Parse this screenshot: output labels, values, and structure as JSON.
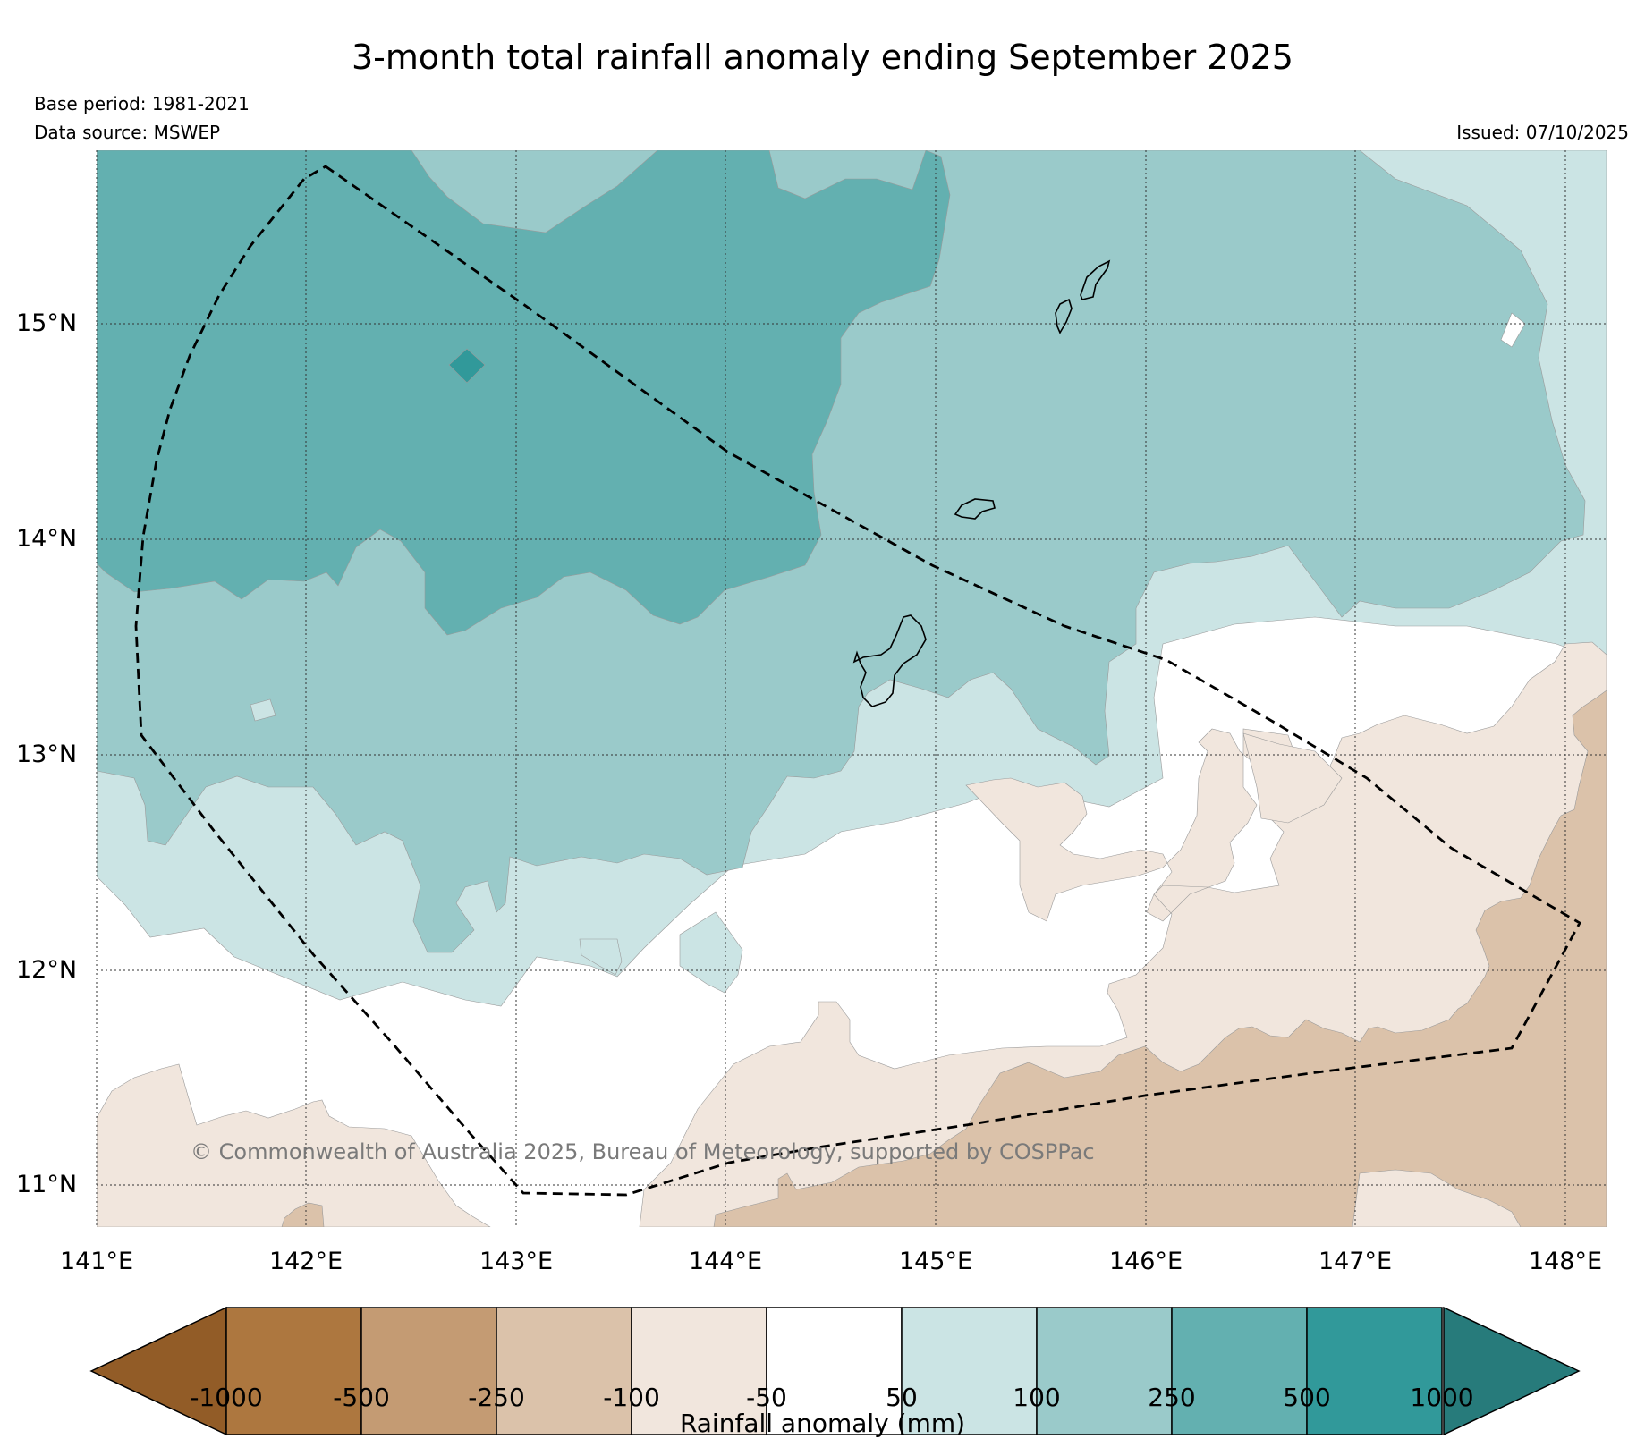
{
  "map": {
    "title": "3-month total rainfall anomaly ending September 2025",
    "base_period": "Base period: 1981-2021",
    "data_source": "Data source: MSWEP",
    "issued": "Issued: 07/10/2025",
    "copyright": "© Commonwealth of Australia 2025, Bureau of Meteorology, supported by COSPPac",
    "lat_labels": [
      "15°N",
      "14°N",
      "13°N",
      "12°N",
      "11°N"
    ],
    "lon_labels": [
      "141°E",
      "142°E",
      "143°E",
      "144°E",
      "145°E",
      "146°E",
      "147°E",
      "148°E"
    ]
  },
  "colorbar": {
    "title": "Rainfall anomaly (mm)",
    "labels": [
      "-1000",
      "-500",
      "-250",
      "-100",
      "-50",
      "50",
      "100",
      "250",
      "500",
      "1000"
    ],
    "colors": [
      "#925c27",
      "#ad773f",
      "#c49b73",
      "#dbc2aa",
      "#f1e6dd",
      "#ffffff",
      "#cbe4e4",
      "#9acaca",
      "#63b0b0",
      "#31999a",
      "#277b7b"
    ]
  }
}
